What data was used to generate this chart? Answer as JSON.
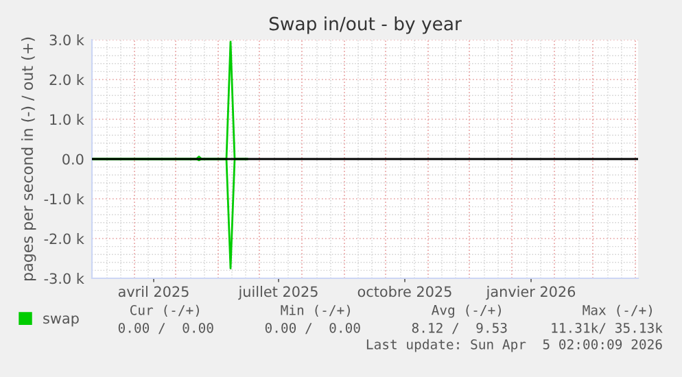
{
  "chart_data": {
    "type": "line",
    "title": "Swap in/out - by year",
    "ylabel": "pages per second in (-) / out (+)",
    "x": [
      "2025-03-02",
      "2025-05-16",
      "2025-05-18",
      "2025-05-20",
      "2025-06-07",
      "2025-06-10",
      "2025-06-13",
      "2025-06-22"
    ],
    "series": [
      {
        "name": "swap",
        "color": "#00cc00",
        "values": [
          0,
          0,
          60,
          0,
          0,
          2950,
          0,
          0
        ]
      },
      {
        "color": "#00cc00",
        "values": [
          0,
          0,
          -30,
          0,
          0,
          -2750,
          0,
          0
        ]
      }
    ],
    "xlim": [
      "2025-03-01",
      "2026-04-03"
    ],
    "xticks": [
      {
        "value": "2025-04-15",
        "label": "avril 2025"
      },
      {
        "value": "2025-07-15",
        "label": "juillet 2025"
      },
      {
        "value": "2025-10-15",
        "label": "octobre 2025"
      },
      {
        "value": "2026-01-15",
        "label": "janvier 2026"
      }
    ],
    "ylim": [
      -3000,
      3000
    ],
    "yticks": [
      {
        "value": -3000,
        "label": "-3.0 k"
      },
      {
        "value": -2000,
        "label": "-2.0 k"
      },
      {
        "value": -1000,
        "label": "-1.0 k"
      },
      {
        "value": 0,
        "label": "0.0"
      },
      {
        "value": 1000,
        "label": "1.0 k"
      },
      {
        "value": 2000,
        "label": "2.0 k"
      },
      {
        "value": 3000,
        "label": "3.0 k"
      }
    ],
    "ref_lines": [
      {
        "axis": "y",
        "value": 0,
        "color": "#000000"
      }
    ],
    "grid": true,
    "legend": "bottom left",
    "annotations": [
      "Cur (-/+)",
      "Min (-/+)",
      "Avg (-/+)",
      "Max (-/+)",
      "0.00 /  0.00",
      "0.00 /  0.00",
      "8.12 /  9.53",
      "11.31k/ 35.13k",
      "Last update: Sun Apr  5 02:00:09 2026"
    ]
  }
}
